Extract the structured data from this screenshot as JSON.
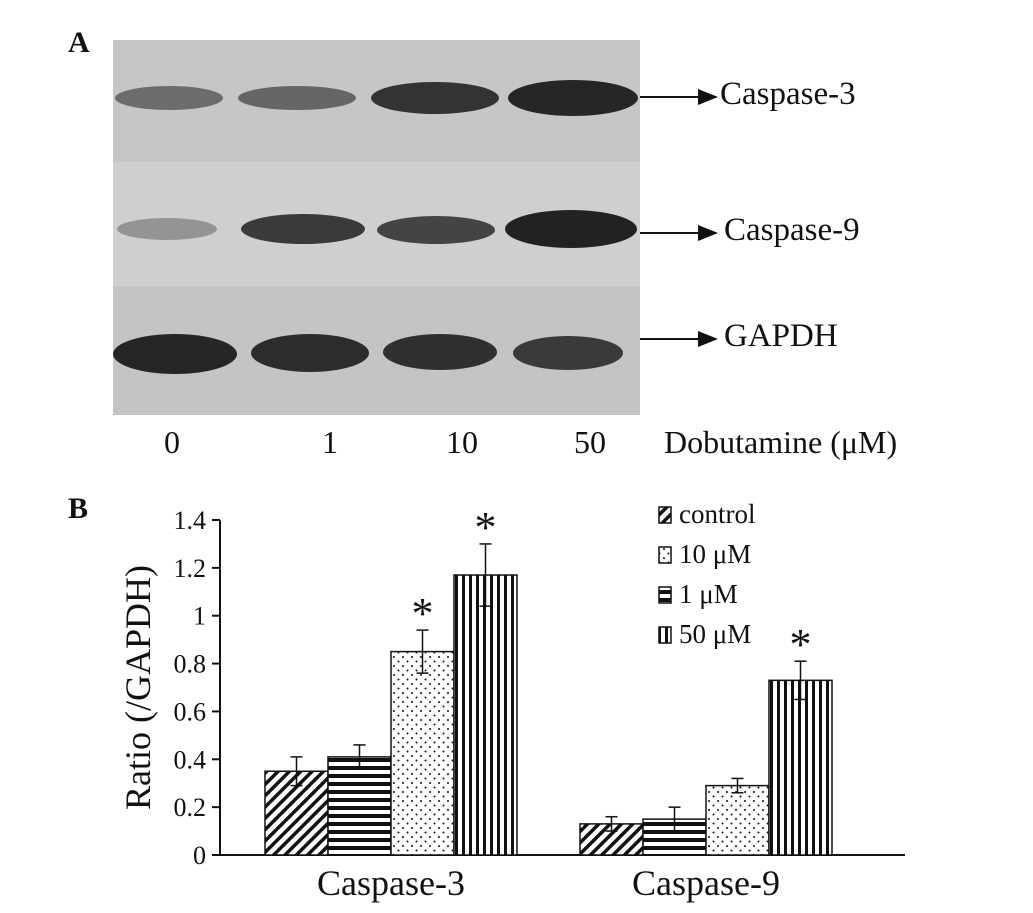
{
  "panel_a": {
    "letter": "A",
    "proteins": [
      "Caspase-3",
      "Caspase-9",
      "GAPDH"
    ],
    "lanes": [
      "0",
      "1",
      "10",
      "50"
    ],
    "axis_title": "Dobutamine (μM)"
  },
  "panel_b": {
    "letter": "B",
    "significance_marker": "*"
  },
  "colors": {
    "ink": "#111111",
    "blot_bg": "#c9c9c9",
    "band": "#2a2a2a"
  },
  "chart_data": {
    "type": "bar",
    "categories": [
      "Caspase-3",
      "Caspase-9"
    ],
    "series": [
      {
        "name": "control",
        "pattern": "diagonal-stripes",
        "values": [
          0.35,
          0.13
        ],
        "errors": [
          0.06,
          0.03
        ],
        "significant": [
          false,
          false
        ]
      },
      {
        "name": "1 μM",
        "pattern": "horizontal-stripes",
        "values": [
          0.41,
          0.15
        ],
        "errors": [
          0.05,
          0.05
        ],
        "significant": [
          false,
          false
        ]
      },
      {
        "name": "10 μM",
        "pattern": "dots",
        "values": [
          0.85,
          0.29
        ],
        "errors": [
          0.09,
          0.03
        ],
        "significant": [
          true,
          false
        ]
      },
      {
        "name": "50 μM",
        "pattern": "vertical-stripes",
        "values": [
          1.17,
          0.73
        ],
        "errors": [
          0.13,
          0.08
        ],
        "significant": [
          true,
          true
        ]
      }
    ],
    "legend_order": [
      "control",
      "10 μM",
      "1 μM",
      "50 μM"
    ],
    "legend_position": "top-right",
    "ylabel": "Ratio (/GAPDH)",
    "xlabel": "",
    "ylim": [
      0,
      1.4
    ],
    "yticks": [
      "0",
      "0.2",
      "0.4",
      "0.6",
      "0.8",
      "1",
      "1.2",
      "1.4"
    ],
    "grid": false
  }
}
